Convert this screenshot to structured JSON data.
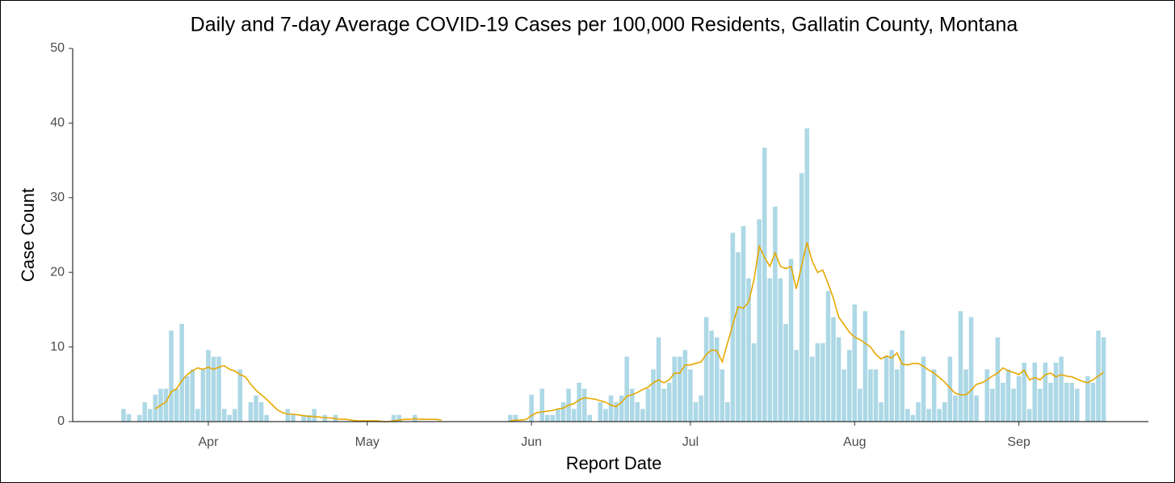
{
  "chart_data": {
    "type": "bar",
    "title": "Daily and 7-day Average COVID-19 Cases per 100,000 Residents, Gallatin County, Montana",
    "x_label": "Report Date",
    "y_label": "Case Count",
    "categories": [
      null,
      null,
      null,
      null,
      null,
      null,
      null,
      null,
      null,
      null,
      null,
      null,
      null,
      null,
      null,
      null,
      "Apr",
      null,
      null,
      null,
      null,
      null,
      null,
      null,
      null,
      null,
      null,
      null,
      null,
      null,
      null,
      null,
      null,
      null,
      null,
      null,
      null,
      null,
      null,
      null,
      null,
      null,
      null,
      null,
      null,
      null,
      "May",
      null,
      null,
      null,
      null,
      null,
      null,
      null,
      null,
      null,
      null,
      null,
      null,
      null,
      null,
      null,
      null,
      null,
      null,
      null,
      null,
      null,
      null,
      null,
      null,
      null,
      null,
      null,
      null,
      null,
      null,
      "Jun",
      null,
      null,
      null,
      null,
      null,
      null,
      null,
      null,
      null,
      null,
      null,
      null,
      null,
      null,
      null,
      null,
      null,
      null,
      null,
      null,
      null,
      null,
      null,
      null,
      null,
      null,
      null,
      null,
      null,
      "Jul",
      null,
      null,
      null,
      null,
      null,
      null,
      null,
      null,
      null,
      null,
      null,
      null,
      null,
      null,
      null,
      null,
      null,
      null,
      null,
      null,
      null,
      null,
      null,
      null,
      null,
      null,
      null,
      null,
      null,
      null,
      "Aug",
      null,
      null,
      null,
      null,
      null,
      null,
      null,
      null,
      null,
      null,
      null,
      null,
      null,
      null,
      null,
      null,
      null,
      null,
      null,
      null,
      null,
      null,
      null,
      null,
      null,
      null,
      null,
      null,
      null,
      null,
      "Sep",
      null,
      null,
      null,
      null,
      null,
      null,
      null,
      null,
      null,
      null,
      null,
      null,
      null,
      null,
      null,
      null
    ],
    "series": [
      {
        "type": "bar",
        "color": "#add8e6",
        "values": [
          1.7,
          1.0,
          0,
          0.9,
          2.6,
          1.7,
          3.6,
          4.4,
          4.4,
          12.2,
          4.4,
          13.1,
          6.1,
          7.0,
          1.7,
          7.0,
          9.6,
          8.7,
          8.7,
          1.7,
          0.9,
          1.7,
          7.0,
          0,
          2.6,
          3.5,
          2.6,
          0.9,
          0,
          0,
          0,
          1.7,
          0.9,
          0,
          0.9,
          0.9,
          1.7,
          0,
          0.9,
          0,
          0.9,
          0,
          0,
          0,
          0,
          0,
          0,
          0,
          0,
          0,
          0,
          0.9,
          0.9,
          0,
          0,
          0.9,
          0,
          0,
          0,
          0,
          0,
          0,
          0,
          0,
          0,
          0,
          0,
          0,
          0,
          0,
          0,
          0,
          0,
          0.9,
          0.9,
          0,
          0,
          3.6,
          0,
          4.4,
          0.9,
          0.9,
          1.7,
          2.6,
          4.4,
          1.7,
          5.2,
          4.4,
          0.9,
          0,
          2.6,
          1.7,
          3.5,
          2.6,
          3.5,
          8.7,
          4.4,
          2.6,
          1.7,
          4.4,
          7.0,
          11.3,
          4.4,
          5.2,
          8.7,
          8.7,
          9.6,
          7.0,
          2.6,
          3.5,
          14.0,
          12.2,
          11.3,
          7.0,
          2.6,
          25.3,
          22.7,
          26.2,
          19.2,
          10.5,
          27.1,
          36.7,
          19.2,
          28.8,
          19.2,
          13.1,
          21.8,
          9.6,
          33.3,
          39.3,
          8.7,
          10.5,
          10.5,
          17.5,
          14.0,
          11.3,
          7.0,
          9.6,
          15.7,
          4.4,
          14.8,
          7.0,
          7.0,
          2.6,
          8.7,
          9.6,
          7.0,
          12.2,
          1.7,
          0.9,
          2.6,
          8.7,
          1.7,
          7.0,
          1.7,
          2.6,
          8.7,
          3.5,
          14.8,
          7.0,
          14.0,
          3.5,
          0,
          7.0,
          4.4,
          11.3,
          5.2,
          7.0,
          4.4,
          6.1,
          7.9,
          1.7,
          7.9,
          4.4,
          7.9,
          5.2,
          7.9,
          8.7,
          5.2,
          5.2,
          4.4,
          0,
          6.1,
          5.2,
          12.2,
          11.3
        ]
      },
      {
        "type": "line",
        "color": "#e6a800",
        "values": [
          null,
          null,
          null,
          null,
          null,
          null,
          1.7,
          2.2,
          2.6,
          4.0,
          4.4,
          5.5,
          6.3,
          6.8,
          7.2,
          7.0,
          7.3,
          7.0,
          7.3,
          7.5,
          7.0,
          6.8,
          6.3,
          6.0,
          5.0,
          4.2,
          3.6,
          3.0,
          2.3,
          1.6,
          1.2,
          1.0,
          1.0,
          0.9,
          0.8,
          0.7,
          0.7,
          0.6,
          0.5,
          0.5,
          0.4,
          0.3,
          0.3,
          0.2,
          0.1,
          0.1,
          0.1,
          0.1,
          0.1,
          0,
          0,
          0.1,
          0.2,
          0.3,
          0.3,
          0.4,
          0.3,
          0.3,
          0.3,
          0.3,
          0.2,
          null,
          null,
          null,
          null,
          null,
          null,
          null,
          null,
          null,
          null,
          null,
          null,
          0.1,
          0.2,
          0.2,
          0.3,
          0.8,
          1.2,
          1.3,
          1.4,
          1.5,
          1.7,
          1.8,
          2.2,
          2.4,
          2.9,
          3.2,
          3.1,
          3.0,
          2.8,
          2.6,
          2.2,
          2.0,
          2.6,
          3.4,
          3.6,
          3.9,
          4.3,
          4.6,
          5.2,
          5.6,
          5.2,
          5.6,
          6.5,
          6.5,
          7.6,
          7.6,
          7.8,
          8.0,
          9.0,
          9.6,
          9.5,
          8.0,
          10.5,
          13.0,
          15.4,
          15.2,
          16.0,
          19.0,
          23.5,
          22.0,
          20.8,
          22.6,
          20.8,
          20.5,
          20.8,
          17.8,
          20.9,
          24.0,
          21.5,
          20.0,
          20.3,
          18.5,
          16.5,
          14.0,
          13.0,
          12.0,
          11.3,
          11.0,
          10.5,
          10.0,
          9.0,
          8.4,
          8.8,
          8.5,
          9.2,
          7.7,
          7.6,
          7.8,
          7.8,
          7.4,
          6.9,
          6.5,
          5.9,
          5.3,
          4.5,
          3.8,
          3.6,
          3.6,
          4.2,
          5.0,
          5.2,
          5.6,
          6.1,
          6.5,
          7.2,
          6.8,
          6.6,
          6.3,
          6.9,
          5.6,
          5.9,
          5.6,
          6.3,
          6.5,
          6.0,
          6.3,
          6.1,
          6.0,
          5.7,
          5.4,
          5.2,
          5.6,
          6.1,
          6.6
        ]
      }
    ],
    "ylim": [
      0,
      50
    ],
    "yticks": [
      0,
      10,
      20,
      30,
      40,
      50
    ],
    "grid": false
  }
}
